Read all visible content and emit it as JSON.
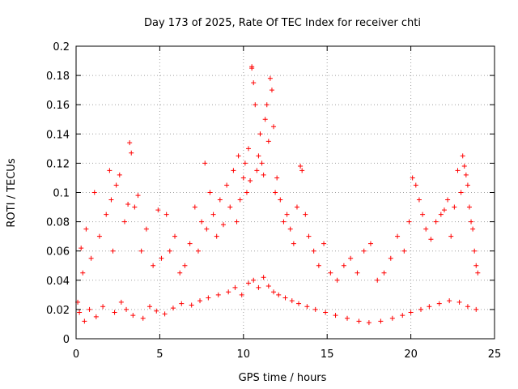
{
  "chart_data": {
    "type": "scatter",
    "title": "Day 173 of 2025, Rate Of TEC Index for receiver chti",
    "xlabel": "GPS time / hours",
    "ylabel": "ROTI / TECUs",
    "xlim": [
      0,
      25
    ],
    "ylim": [
      0,
      0.2
    ],
    "xticks": [
      "0",
      "5",
      "10",
      "15",
      "20",
      "25"
    ],
    "xtick_values": [
      0,
      5,
      10,
      15,
      20,
      25
    ],
    "yticks": [
      "0",
      "0.02",
      "0.04",
      "0.06",
      "0.08",
      "0.1",
      "0.12",
      "0.14",
      "0.16",
      "0.18",
      "0.2"
    ],
    "ytick_values": [
      0,
      0.02,
      0.04,
      0.06,
      0.08,
      0.1,
      0.12,
      0.14,
      0.16,
      0.18,
      0.2
    ],
    "grid": true,
    "legend": "none",
    "marker": "plus",
    "color": "#ff0000",
    "series": [
      {
        "x": [
          0.1,
          0.3,
          0.4,
          0.6,
          0.9,
          1.1,
          1.4,
          1.8,
          2.0,
          2.1,
          2.2,
          2.4,
          2.6,
          2.9,
          3.1,
          3.2,
          3.3,
          3.5,
          3.7,
          3.9,
          4.2,
          4.6,
          4.9,
          5.1,
          5.4,
          5.6,
          5.9,
          6.2,
          6.5,
          6.8,
          7.1,
          7.3,
          7.5,
          7.7,
          7.8,
          8.0,
          8.2,
          8.4,
          8.6,
          8.8,
          9.0,
          9.2,
          9.4,
          9.6,
          9.7,
          9.8,
          10.0,
          10.1,
          10.2,
          10.3,
          10.4,
          10.5,
          10.5,
          10.6,
          10.7,
          10.8,
          10.9,
          11.0,
          11.1,
          11.2,
          11.3,
          11.4,
          11.5,
          11.6,
          11.7,
          11.8,
          11.9,
          12.0,
          12.2,
          12.4,
          12.6,
          12.8,
          13.0,
          13.2,
          13.4,
          13.5,
          13.7,
          13.9,
          14.2,
          14.5,
          14.8,
          15.2,
          15.6,
          16.0,
          16.4,
          16.8,
          17.2,
          17.6,
          18.0,
          18.4,
          18.8,
          19.2,
          19.6,
          19.9,
          20.1,
          20.3,
          20.5,
          20.7,
          20.9,
          21.2,
          21.5,
          21.8,
          22.0,
          22.2,
          22.4,
          22.6,
          22.8,
          23.0,
          23.1,
          23.2,
          23.3,
          23.4,
          23.5,
          23.6,
          23.7,
          23.8,
          23.9,
          24.0,
          0.2,
          0.5,
          0.8,
          1.2,
          1.6,
          2.3,
          2.7,
          3.0,
          3.4,
          4.0,
          4.4,
          4.8,
          5.3,
          5.8,
          6.3,
          6.9,
          7.4,
          7.9,
          8.5,
          9.1,
          9.5,
          9.9,
          10.3,
          10.6,
          10.9,
          11.2,
          11.5,
          11.8,
          12.1,
          12.5,
          12.9,
          13.3,
          13.8,
          14.3,
          14.9,
          15.5,
          16.2,
          16.9,
          17.5,
          18.2,
          18.9,
          19.5,
          20.0,
          20.6,
          21.1,
          21.7,
          22.3,
          22.9,
          23.4,
          23.9
        ],
        "y": [
          0.025,
          0.062,
          0.045,
          0.075,
          0.055,
          0.1,
          0.07,
          0.085,
          0.115,
          0.095,
          0.06,
          0.105,
          0.112,
          0.08,
          0.092,
          0.134,
          0.127,
          0.09,
          0.098,
          0.06,
          0.075,
          0.05,
          0.088,
          0.055,
          0.085,
          0.06,
          0.07,
          0.045,
          0.05,
          0.065,
          0.09,
          0.06,
          0.08,
          0.12,
          0.075,
          0.1,
          0.085,
          0.07,
          0.095,
          0.078,
          0.105,
          0.09,
          0.115,
          0.08,
          0.125,
          0.095,
          0.11,
          0.12,
          0.1,
          0.13,
          0.108,
          0.186,
          0.185,
          0.175,
          0.16,
          0.115,
          0.125,
          0.14,
          0.12,
          0.112,
          0.15,
          0.16,
          0.135,
          0.178,
          0.17,
          0.145,
          0.1,
          0.11,
          0.095,
          0.08,
          0.085,
          0.075,
          0.065,
          0.09,
          0.118,
          0.115,
          0.085,
          0.07,
          0.06,
          0.05,
          0.065,
          0.045,
          0.04,
          0.05,
          0.055,
          0.045,
          0.06,
          0.065,
          0.04,
          0.045,
          0.055,
          0.07,
          0.06,
          0.08,
          0.11,
          0.105,
          0.095,
          0.085,
          0.075,
          0.068,
          0.08,
          0.085,
          0.088,
          0.095,
          0.07,
          0.09,
          0.115,
          0.1,
          0.125,
          0.118,
          0.112,
          0.105,
          0.09,
          0.08,
          0.075,
          0.06,
          0.05,
          0.045,
          0.018,
          0.012,
          0.02,
          0.015,
          0.022,
          0.018,
          0.025,
          0.02,
          0.016,
          0.014,
          0.022,
          0.019,
          0.017,
          0.021,
          0.024,
          0.023,
          0.026,
          0.028,
          0.03,
          0.032,
          0.035,
          0.03,
          0.038,
          0.04,
          0.035,
          0.042,
          0.036,
          0.032,
          0.03,
          0.028,
          0.026,
          0.024,
          0.022,
          0.02,
          0.018,
          0.016,
          0.014,
          0.012,
          0.011,
          0.012,
          0.014,
          0.016,
          0.018,
          0.02,
          0.022,
          0.024,
          0.026,
          0.025,
          0.022,
          0.02
        ]
      }
    ]
  }
}
